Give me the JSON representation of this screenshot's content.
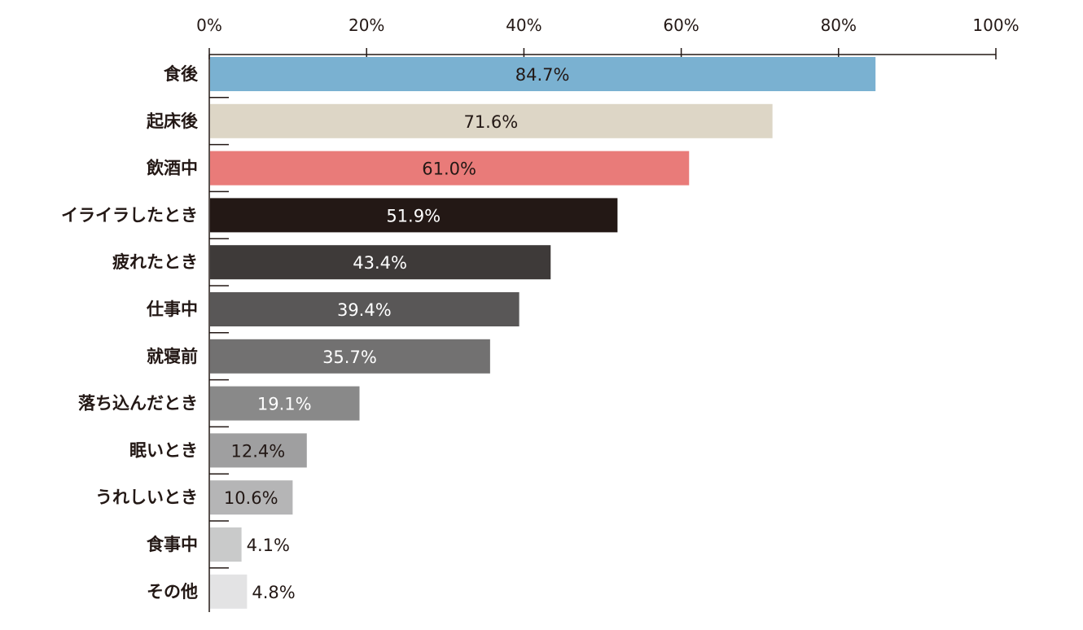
{
  "chart_data": {
    "type": "bar",
    "orientation": "horizontal",
    "title": "",
    "xlabel": "",
    "ylabel": "",
    "xlim": [
      0,
      100
    ],
    "x_ticks": [
      "0%",
      "20%",
      "40%",
      "60%",
      "80%",
      "100%"
    ],
    "grid": false,
    "legend": "none",
    "categories": [
      "食後",
      "起床後",
      "飲酒中",
      "イライラしたとき",
      "疲れたとき",
      "仕事中",
      "就寝前",
      "落ち込んだとき",
      "眠いとき",
      "うれしいとき",
      "食事中",
      "その他"
    ],
    "values": [
      84.7,
      71.6,
      61.0,
      51.9,
      43.4,
      39.4,
      35.7,
      19.1,
      12.4,
      10.6,
      4.1,
      4.8
    ],
    "value_labels": [
      "84.7%",
      "71.6%",
      "61.0%",
      "51.9%",
      "43.4%",
      "39.4%",
      "35.7%",
      "19.1%",
      "12.4%",
      "10.6%",
      "4.1%",
      "4.8%"
    ],
    "bar_colors": [
      "#7ab1d1",
      "#ddd6c6",
      "#e97b79",
      "#231815",
      "#3e3a39",
      "#595757",
      "#727171",
      "#898989",
      "#9f9fa0",
      "#b5b5b6",
      "#c9caca",
      "#e3e3e4"
    ],
    "label_colors": [
      "#231815",
      "#231815",
      "#231815",
      "#ffffff",
      "#ffffff",
      "#ffffff",
      "#ffffff",
      "#ffffff",
      "#231815",
      "#231815",
      "#231815",
      "#231815"
    ]
  }
}
